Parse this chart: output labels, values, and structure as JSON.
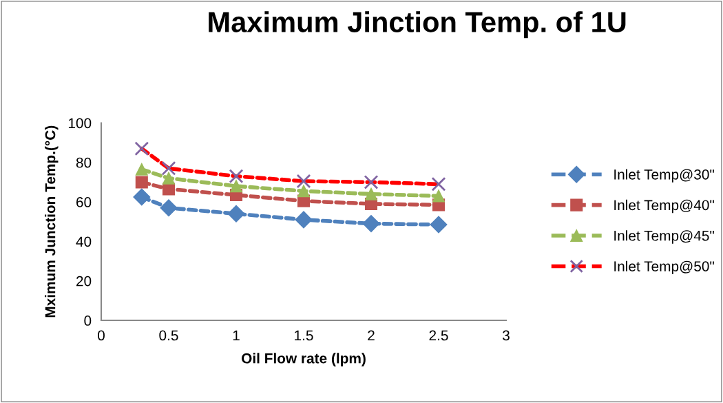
{
  "chart_data": {
    "type": "line",
    "title": "Maximum Jinction Temp. of 1U",
    "xlabel": "Oil Flow rate (lpm)",
    "ylabel": "Mximum Junction Temp.(°C)",
    "x": [
      0.3,
      0.5,
      1,
      1.5,
      2,
      2.5
    ],
    "series": [
      {
        "name": "Inlet Temp@30\"",
        "color": "#4f81bd",
        "marker": "diamond",
        "values": [
          62.5,
          57,
          54,
          51,
          49,
          48.5
        ]
      },
      {
        "name": "Inlet Temp@40\"",
        "color": "#c0504d",
        "marker": "square",
        "values": [
          70,
          66.5,
          63.5,
          60.5,
          59,
          58.5
        ]
      },
      {
        "name": "Inlet Temp@45\"",
        "color": "#9bbb59",
        "marker": "triangle",
        "values": [
          76.5,
          72,
          68,
          65.5,
          64,
          63
        ]
      },
      {
        "name": "Inlet Temp@50\"",
        "color": "#ff0000",
        "marker": "cross",
        "colors": [
          "#8064a2",
          "#8064a2",
          "#8064a2",
          "#8064a2",
          "#8064a2",
          "#8064a2"
        ],
        "values": [
          87,
          77,
          73,
          70.5,
          70,
          69
        ]
      }
    ],
    "xlim": [
      0,
      3
    ],
    "xticks": [
      0,
      0.5,
      1,
      1.5,
      2,
      2.5,
      3
    ],
    "ylim": [
      0,
      100
    ],
    "yticks": [
      0,
      20,
      40,
      60,
      80,
      100
    ],
    "line_style": "dashed",
    "grid": false,
    "legend": "right"
  }
}
